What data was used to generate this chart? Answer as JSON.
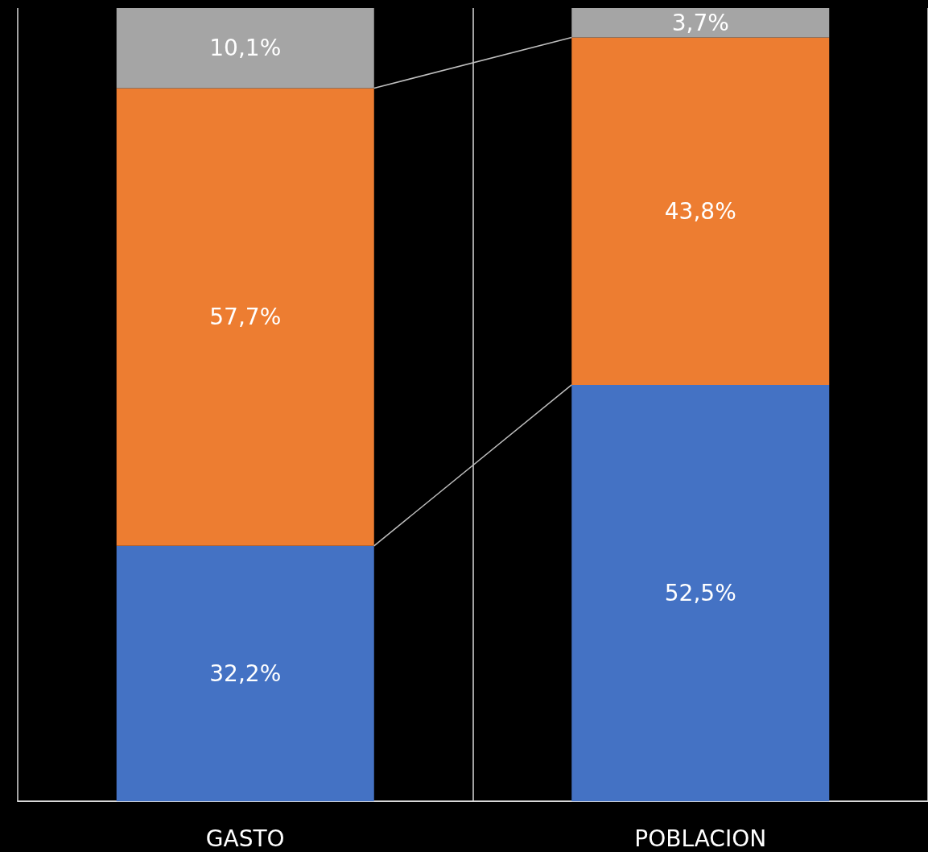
{
  "chart_data": {
    "type": "bar",
    "stacked": true,
    "categories": [
      "GASTO",
      "POBLACION"
    ],
    "series": [
      {
        "color": "#4472c4",
        "values": [
          32.2,
          52.5
        ],
        "value_labels": [
          "32,2%",
          "52,5%"
        ]
      },
      {
        "color": "#ed7d31",
        "values": [
          57.7,
          43.8
        ],
        "value_labels": [
          "57,7%",
          "43,8%"
        ]
      },
      {
        "color": "#a5a5a5",
        "values": [
          10.1,
          3.7
        ],
        "value_labels": [
          "10,1%",
          "3,7%"
        ]
      }
    ],
    "ylim": [
      0,
      100
    ],
    "grid": "x"
  }
}
